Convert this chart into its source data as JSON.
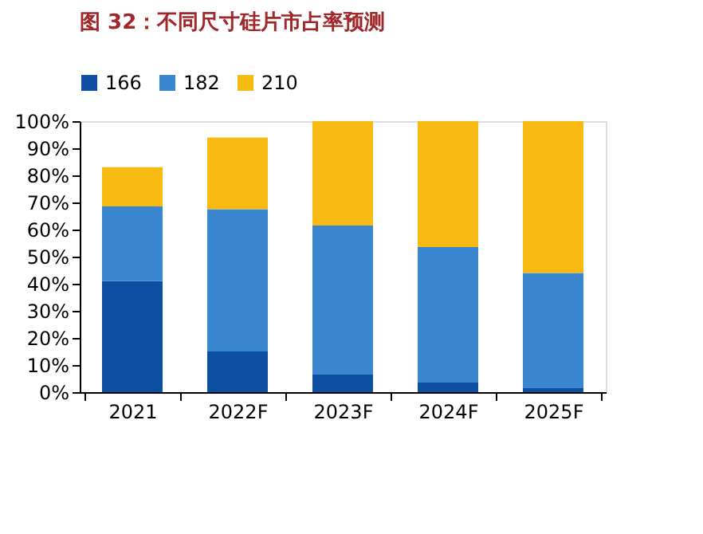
{
  "chart_data": {
    "type": "bar",
    "title": "图 32：不同尺寸硅片市占率预测",
    "stacked": true,
    "categories": [
      "2021",
      "2022F",
      "2023F",
      "2024F",
      "2025F"
    ],
    "series": [
      {
        "name": "166",
        "color": "#0d4fa3",
        "values": [
          41,
          15,
          6.5,
          3.5,
          1.5
        ]
      },
      {
        "name": "182",
        "color": "#3a87d0",
        "values": [
          27.5,
          52.5,
          55,
          50,
          42.5
        ]
      },
      {
        "name": "210",
        "color": "#f8b912",
        "values": [
          14.5,
          26.5,
          38.5,
          46.5,
          56
        ]
      }
    ],
    "ylim": [
      0,
      100
    ],
    "yticks": [
      {
        "value": 0,
        "label": "0%"
      },
      {
        "value": 10,
        "label": "10%"
      },
      {
        "value": 20,
        "label": "20%"
      },
      {
        "value": 30,
        "label": "30%"
      },
      {
        "value": 40,
        "label": "40%"
      },
      {
        "value": 50,
        "label": "50%"
      },
      {
        "value": 60,
        "label": "60%"
      },
      {
        "value": 70,
        "label": "70%"
      },
      {
        "value": 80,
        "label": "80%"
      },
      {
        "value": 90,
        "label": "90%"
      },
      {
        "value": 100,
        "label": "100%"
      }
    ],
    "grid": false,
    "legend": "top"
  }
}
